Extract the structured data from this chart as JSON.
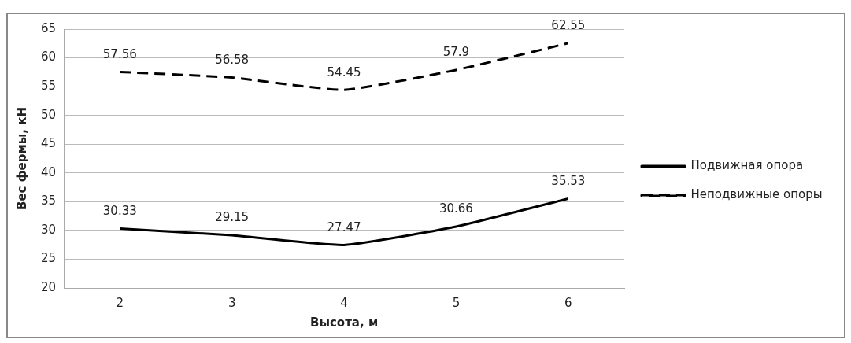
{
  "chart_data": {
    "type": "line",
    "xlabel": "Высота, м",
    "ylabel": "Вес фермы, кН",
    "categories": [
      "2",
      "3",
      "4",
      "5",
      "6"
    ],
    "series": [
      {
        "name": "Подвижная опора",
        "color": "#000000",
        "line_style": "solid",
        "values": [
          30.33,
          29.15,
          27.47,
          30.66,
          35.53
        ]
      },
      {
        "name": "Неподвижные опоры",
        "color": "#000000",
        "line_style": "dashed",
        "values": [
          57.56,
          56.58,
          54.45,
          57.9,
          62.55
        ]
      }
    ],
    "ylim": [
      20,
      65
    ],
    "yticks": [
      20,
      25,
      30,
      35,
      40,
      45,
      50,
      55,
      60,
      65
    ],
    "grid": "y",
    "legend": "right",
    "marker": "none",
    "data_labels": true
  }
}
